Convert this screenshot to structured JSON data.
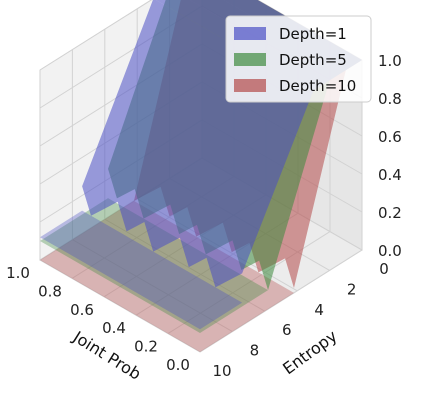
{
  "chart_data": {
    "type": "surface3d",
    "title": "",
    "xlabel": "Joint Prob",
    "ylabel": "Entropy",
    "zlabel": "",
    "x_ticks": [
      1.0,
      0.8,
      0.6,
      0.4,
      0.2,
      0.0
    ],
    "x_tick_labels": [
      "1.0",
      "0.8",
      "0.6",
      "0.4",
      "0.2",
      "0.0"
    ],
    "y_ticks": [
      10,
      8,
      6,
      4,
      2,
      0
    ],
    "y_tick_labels": [
      "10",
      "8",
      "6",
      "4",
      "2",
      "0"
    ],
    "z_ticks": [
      0.0,
      0.2,
      0.4,
      0.6,
      0.8,
      1.0
    ],
    "z_tick_labels": [
      "0.0",
      "0.2",
      "0.4",
      "0.6",
      "0.8",
      "1.0"
    ],
    "xlim": [
      0,
      1
    ],
    "ylim": [
      0,
      10
    ],
    "zlim": [
      0,
      1
    ],
    "grid": true,
    "legend_position": "top-right",
    "series": [
      {
        "name": "Depth=1",
        "color": "#4a4fc4",
        "plateau": 1.0,
        "cliff_entropy": 3.0,
        "low_value": 0.12,
        "surface_points": [
          [
            1.0,
            0,
            1.0
          ],
          [
            0.0,
            0,
            1.0
          ],
          [
            1.0,
            3,
            1.0
          ],
          [
            0.0,
            3,
            0.98
          ],
          [
            1.0,
            10,
            0.15
          ],
          [
            0.0,
            10,
            0.1
          ]
        ]
      },
      {
        "name": "Depth=5",
        "color": "#3e8a3e",
        "plateau": 1.0,
        "cliff_entropy": 2.0,
        "low_value": 0.1,
        "surface_points": [
          [
            1.0,
            0,
            1.0
          ],
          [
            0.0,
            0,
            0.95
          ],
          [
            1.0,
            2,
            1.0
          ],
          [
            0.0,
            2,
            0.85
          ],
          [
            1.0,
            10,
            0.1
          ],
          [
            0.0,
            10,
            0.05
          ]
        ]
      },
      {
        "name": "Depth=10",
        "color": "#b44a4a",
        "plateau": 1.0,
        "cliff_entropy": 1.0,
        "low_value": 0.0,
        "surface_points": [
          [
            1.0,
            0,
            1.0
          ],
          [
            0.0,
            0,
            0.9
          ],
          [
            1.0,
            1,
            1.0
          ],
          [
            0.0,
            1,
            0.7
          ],
          [
            1.0,
            10,
            0.0
          ],
          [
            0.0,
            10,
            0.0
          ]
        ]
      }
    ]
  }
}
